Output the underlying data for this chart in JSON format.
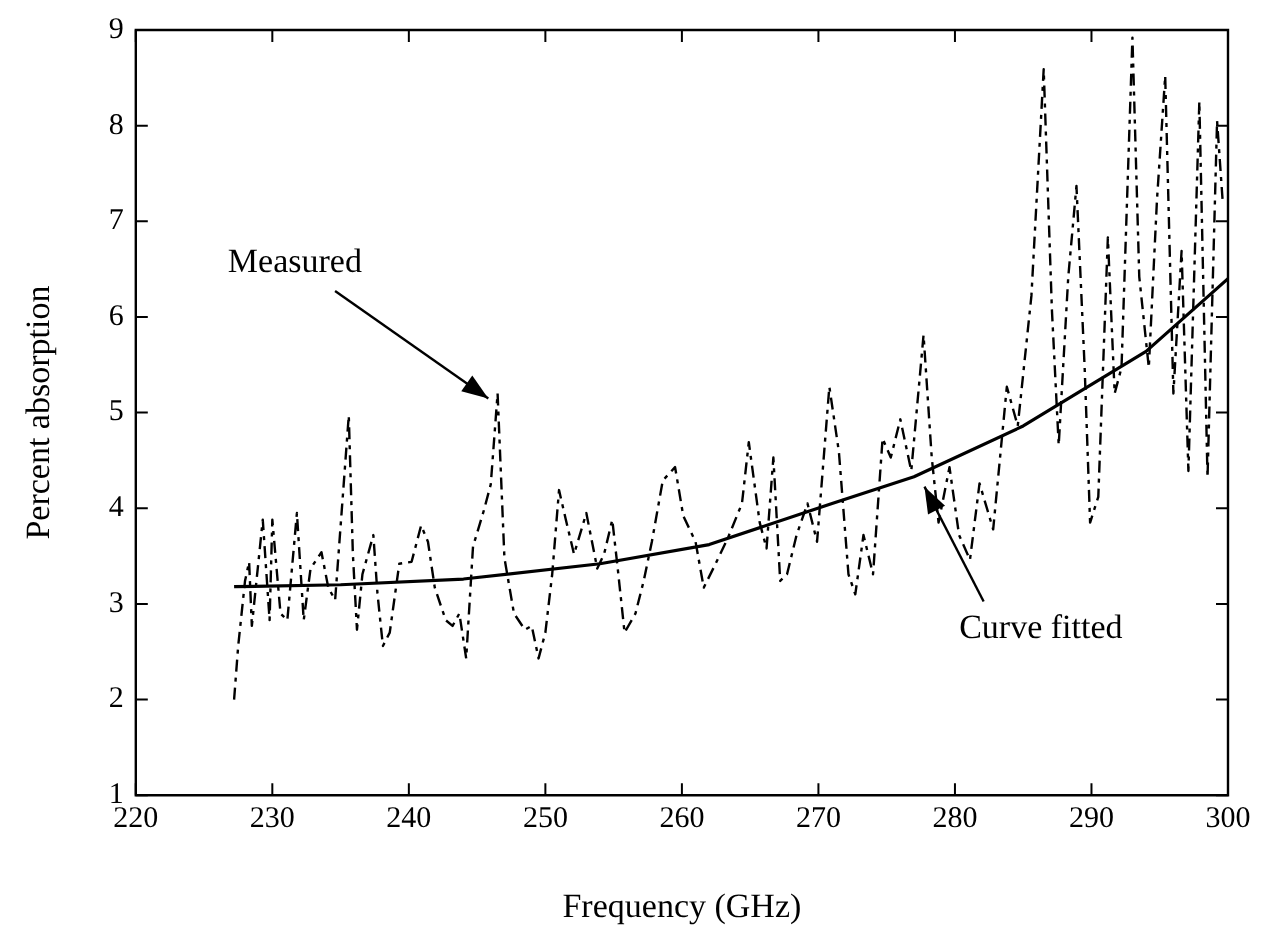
{
  "chart_data": {
    "type": "line",
    "xlabel": "Frequency (GHz)",
    "ylabel": "Percent absorption",
    "xlim": [
      220,
      300
    ],
    "xticks": [
      220,
      230,
      240,
      250,
      260,
      270,
      280,
      290,
      300
    ],
    "ylim": [
      1,
      9
    ],
    "yticks": [
      1,
      2,
      3,
      4,
      5,
      6,
      7,
      8,
      9
    ],
    "grid": false,
    "legend": false,
    "marker": "none",
    "annotations": [
      {
        "text": "Measured",
        "x": 246.3,
        "y": 5.1
      },
      {
        "text": "Curve fitted",
        "x": 277.5,
        "y": 4.3
      }
    ],
    "series": [
      {
        "color": "#000000",
        "line_style": "dashed",
        "x": [
          227.2,
          227.5,
          228.0,
          228.3,
          228.5,
          229.3,
          229.8,
          230.0,
          230.6,
          231.1,
          231.8,
          232.3,
          232.8,
          233.6,
          234.1,
          234.6,
          235.6,
          235.9,
          236.2,
          236.6,
          237.4,
          237.7,
          238.1,
          238.6,
          239.3,
          240.2,
          240.9,
          241.4,
          241.9,
          242.7,
          243.2,
          243.7,
          244.2,
          244.7,
          245.5,
          246.0,
          246.5,
          247.0,
          247.7,
          248.5,
          249.0,
          249.5,
          250.0,
          250.5,
          251.0,
          251.5,
          252.1,
          253.0,
          253.8,
          254.3,
          254.9,
          255.3,
          255.8,
          256.6,
          257.2,
          257.8,
          258.6,
          259.5,
          260.1,
          261.0,
          261.6,
          262.4,
          263.4,
          264.4,
          264.9,
          265.7,
          266.2,
          266.7,
          267.2,
          267.7,
          268.4,
          269.2,
          269.9,
          270.8,
          271.5,
          272.2,
          272.7,
          273.3,
          274.0,
          274.7,
          275.3,
          276.0,
          276.8,
          277.7,
          278.3,
          278.8,
          279.6,
          280.3,
          281.1,
          281.8,
          282.8,
          283.8,
          284.6,
          285.6,
          286.5,
          287.1,
          287.6,
          288.3,
          288.9,
          289.5,
          289.9,
          290.5,
          291.2,
          291.7,
          292.2,
          293.0,
          293.5,
          294.2,
          294.8,
          295.4,
          296.0,
          296.6,
          297.1,
          297.9,
          298.5,
          299.2,
          299.6
        ],
        "values": [
          2.0,
          2.56,
          3.24,
          3.44,
          2.77,
          3.88,
          2.83,
          3.88,
          2.9,
          2.83,
          3.95,
          2.83,
          3.37,
          3.54,
          3.17,
          3.04,
          4.97,
          3.52,
          2.73,
          3.31,
          3.72,
          3.11,
          2.56,
          2.7,
          3.42,
          3.44,
          3.82,
          3.65,
          3.17,
          2.83,
          2.77,
          2.9,
          2.43,
          3.6,
          3.98,
          4.25,
          5.2,
          3.48,
          2.9,
          2.73,
          2.77,
          2.43,
          2.7,
          3.31,
          4.19,
          3.88,
          3.52,
          3.95,
          3.37,
          3.52,
          3.88,
          3.37,
          2.7,
          2.9,
          3.24,
          3.65,
          4.29,
          4.43,
          3.92,
          3.65,
          3.17,
          3.4,
          3.7,
          4.05,
          4.69,
          3.85,
          3.58,
          4.53,
          3.24,
          3.31,
          3.72,
          4.05,
          3.65,
          5.27,
          4.59,
          3.31,
          3.1,
          3.72,
          3.31,
          4.73,
          4.53,
          4.93,
          4.39,
          5.81,
          4.53,
          3.85,
          4.43,
          3.72,
          3.46,
          4.26,
          3.78,
          5.27,
          4.86,
          6.22,
          8.59,
          6.08,
          4.66,
          6.42,
          7.37,
          5.47,
          3.85,
          4.12,
          6.83,
          5.2,
          5.47,
          8.92,
          6.42,
          5.47,
          7.23,
          8.52,
          5.2,
          6.69,
          4.39,
          8.25,
          4.32,
          8.05,
          7.23
        ]
      },
      {
        "color": "#000000",
        "line_style": "solid",
        "x": [
          227.2,
          235,
          244,
          254,
          262,
          271,
          277,
          285,
          294,
          300
        ],
        "values": [
          3.18,
          3.2,
          3.26,
          3.42,
          3.62,
          4.05,
          4.33,
          4.86,
          5.64,
          6.4
        ]
      }
    ]
  }
}
